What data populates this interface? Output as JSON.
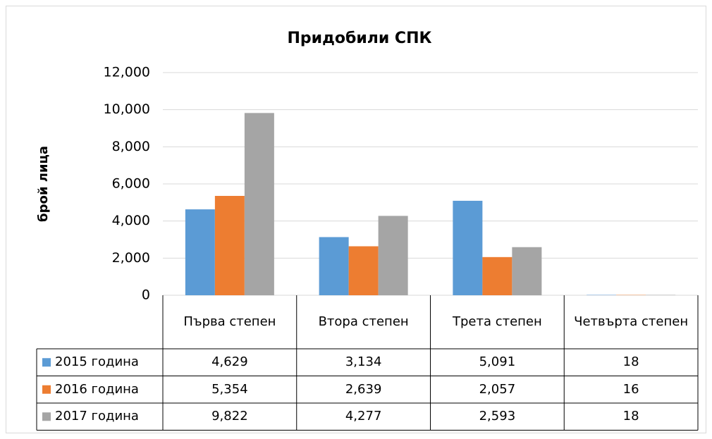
{
  "chart_data": {
    "type": "bar",
    "title": "Придобили СПК",
    "y_label": "брой лица",
    "categories": [
      "Първа степен",
      "Втора степен",
      "Трета степен",
      "Четвърта степен"
    ],
    "series": [
      {
        "name": "2015 година",
        "color": "#5b9bd5",
        "values": [
          4629,
          3134,
          5091,
          18
        ],
        "value_labels": [
          "4,629",
          "3,134",
          "5,091",
          "18"
        ]
      },
      {
        "name": "2016 година",
        "color": "#ed7d31",
        "values": [
          5354,
          2639,
          2057,
          16
        ],
        "value_labels": [
          "5,354",
          "2,639",
          "2,057",
          "16"
        ]
      },
      {
        "name": "2017 година",
        "color": "#a5a5a5",
        "values": [
          9822,
          4277,
          2593,
          18
        ],
        "value_labels": [
          "9,822",
          "4,277",
          "2,593",
          "18"
        ]
      }
    ],
    "ylim": [
      0,
      12000
    ],
    "yticks": [
      0,
      {
        "value": 2000,
        "label": "2,000"
      },
      {
        "value": 4000,
        "label": "4,000"
      },
      {
        "value": 6000,
        "label": "6,000"
      },
      {
        "value": 8000,
        "label": "8,000"
      },
      {
        "value": 10000,
        "label": "10,000"
      },
      {
        "value": 12000,
        "label": "12,000"
      }
    ],
    "grid": true,
    "data_table": true
  }
}
